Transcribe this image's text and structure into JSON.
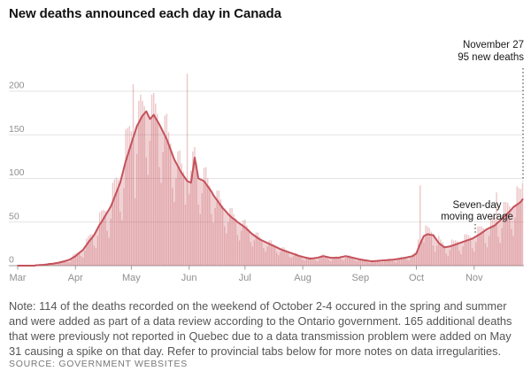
{
  "page": {
    "title": "New deaths announced each day in Canada"
  },
  "annotations": {
    "peak_date": "November 27",
    "peak_value": "95 new deaths",
    "ma_label_line1": "Seven-day",
    "ma_label_line2": "moving average"
  },
  "note": "Note: 114 of the deaths recorded on the weekend of October 2-4 occured in the spring and summer and were added as part of a data review according to the Ontario government. 165 additional deaths that were previously not reported in Quebec due to a data transmission problem were added on May 31 causing a spike on that day. Refer to provincial tabs below for more notes on data irregularities.",
  "source": "SOURCE: GOVERNMENT WEBSITES",
  "colors": {
    "accent_red": "#c4525b",
    "bar_fill": "#c6535a",
    "grid": "#e3e3e3",
    "baseline": "#9e9e9e",
    "axis_text": "#8f8f8f",
    "annotation_text": "#1a1a1a"
  },
  "chart_data": {
    "type": "bar",
    "title": "New deaths announced each day in Canada",
    "xlabel": "",
    "ylabel": "",
    "ylim": [
      0,
      225
    ],
    "yticks": [
      0,
      50,
      100,
      150,
      200
    ],
    "grid": true,
    "n_days": 272,
    "x_range_note": "daily values, March 1 through November 27",
    "months": [
      {
        "label": "Mar",
        "day_offset": 0
      },
      {
        "label": "Apr",
        "day_offset": 31
      },
      {
        "label": "May",
        "day_offset": 61
      },
      {
        "label": "Jun",
        "day_offset": 92
      },
      {
        "label": "Jul",
        "day_offset": 122
      },
      {
        "label": "Aug",
        "day_offset": 153
      },
      {
        "label": "Sep",
        "day_offset": 184
      },
      {
        "label": "Oct",
        "day_offset": 214
      },
      {
        "label": "Nov",
        "day_offset": 245
      }
    ],
    "highlights": {
      "last_day_value": 95,
      "may31_spike": 220,
      "oct3_review_spike": 92,
      "ma_peak": 177
    },
    "series": [
      {
        "name": "New deaths announced each day",
        "type": "bar",
        "values": [
          0,
          0,
          0,
          0,
          0,
          0,
          0,
          0,
          0,
          1,
          1,
          1,
          1,
          1,
          1,
          1,
          2,
          3,
          2,
          3,
          2,
          2,
          3,
          5,
          6,
          6,
          6,
          4,
          4,
          7,
          13,
          14,
          15,
          16,
          11,
          9,
          17,
          31,
          34,
          36,
          36,
          23,
          20,
          34,
          61,
          63,
          64,
          63,
          40,
          32,
          54,
          95,
          99,
          101,
          99,
          62,
          52,
          89,
          156,
          158,
          160,
          154,
          208,
          77,
          128,
          189,
          196,
          189,
          183,
          124,
          104,
          143,
          196,
          198,
          186,
          174,
          113,
          95,
          130,
          172,
          174,
          153,
          140,
          89,
          73,
          100,
          131,
          132,
          117,
          108,
          70,
          220,
          82,
          109,
          131,
          136,
          118,
          70,
          59,
          83,
          112,
          113,
          100,
          92,
          59,
          49,
          66,
          86,
          86,
          76,
          69,
          45,
          37,
          50,
          66,
          66,
          59,
          54,
          35,
          29,
          40,
          52,
          53,
          46,
          42,
          27,
          22,
          29,
          38,
          38,
          33,
          30,
          20,
          16,
          22,
          29,
          29,
          25,
          23,
          15,
          12,
          16,
          21,
          21,
          18,
          17,
          10,
          9,
          11,
          15,
          14,
          12,
          11,
          7,
          6,
          8,
          10,
          10,
          9,
          9,
          6,
          5,
          8,
          12,
          13,
          12,
          10,
          7,
          5,
          8,
          10,
          11,
          10,
          10,
          7,
          6,
          9,
          12,
          12,
          10,
          9,
          6,
          5,
          6,
          8,
          8,
          7,
          6,
          4,
          3,
          4,
          6,
          6,
          6,
          6,
          4,
          4,
          5,
          7,
          8,
          7,
          7,
          5,
          4,
          7,
          9,
          10,
          10,
          9,
          7,
          6,
          9,
          13,
          15,
          17,
          30,
          92,
          28,
          27,
          46,
          45,
          43,
          39,
          23,
          16,
          23,
          34,
          30,
          27,
          23,
          14,
          11,
          18,
          30,
          29,
          29,
          28,
          17,
          13,
          22,
          36,
          36,
          35,
          33,
          20,
          16,
          27,
          45,
          45,
          45,
          43,
          26,
          21,
          34,
          57,
          56,
          55,
          84,
          33,
          26,
          43,
          73,
          73,
          72,
          68,
          42,
          34,
          55,
          91,
          89,
          88,
          95
        ]
      },
      {
        "name": "Seven-day moving average",
        "type": "line",
        "values": [
          0,
          0,
          0,
          0,
          0,
          0,
          0,
          0,
          0,
          0,
          0.5,
          0.6,
          0.8,
          0.9,
          1,
          1.2,
          1.5,
          2,
          2,
          2.3,
          2.7,
          3,
          3.5,
          4,
          4.5,
          5,
          5.7,
          6.3,
          7,
          8.3,
          9.7,
          11,
          12.8,
          14.5,
          16.3,
          18,
          21,
          24,
          27,
          29.7,
          32.3,
          35,
          39,
          43,
          47,
          50,
          53.6,
          57.2,
          60.8,
          64.4,
          68,
          73.4,
          78.8,
          84.2,
          89.6,
          95,
          103.3,
          111.7,
          120,
          126.7,
          133.3,
          140,
          146.7,
          153.3,
          160,
          164,
          168,
          172,
          174.5,
          177,
          172.5,
          168,
          170.5,
          173,
          169.3,
          165.7,
          162,
          157.8,
          153.5,
          149.3,
          145,
          139.3,
          133.5,
          127.8,
          122,
          118,
          114,
          110,
          106,
          103,
          100,
          97,
          96,
          95,
          109,
          124,
          112,
          100,
          99,
          98,
          97,
          94,
          91,
          88,
          85,
          81,
          78,
          75,
          72,
          69,
          66,
          64,
          61.5,
          59,
          57,
          55,
          53.5,
          52,
          50,
          48.5,
          47,
          45.5,
          44,
          42,
          40,
          38,
          36,
          34.5,
          33,
          31.5,
          30,
          29,
          28,
          27,
          26,
          25,
          24,
          23,
          22,
          21,
          20,
          19,
          18,
          17.3,
          16.5,
          15.8,
          15,
          14.3,
          13.5,
          12.8,
          12,
          11.3,
          10.7,
          10,
          9.5,
          9,
          8.5,
          8,
          8.3,
          8.5,
          8.8,
          9,
          9.7,
          10.3,
          11,
          10.5,
          10,
          9.5,
          9,
          9,
          9,
          9,
          9,
          9.5,
          10,
          10.5,
          11,
          10.5,
          10,
          9.5,
          9,
          8.5,
          8,
          7.5,
          7,
          6.7,
          6.3,
          6,
          5.7,
          5.3,
          5,
          5.2,
          5.3,
          5.5,
          5.7,
          5.8,
          6,
          6.2,
          6.3,
          6.5,
          6.7,
          6.8,
          7,
          7.3,
          7.7,
          8,
          8.3,
          8.7,
          9,
          9.5,
          10,
          10.5,
          11,
          12.5,
          14,
          19.5,
          25,
          29.5,
          34,
          35,
          36,
          35.7,
          35.3,
          35,
          32,
          29,
          26,
          24.3,
          22.7,
          21,
          21.3,
          21.7,
          22,
          22.8,
          23.5,
          24.3,
          25,
          25.8,
          26.5,
          27.3,
          28,
          28.8,
          29.5,
          30.3,
          31,
          32.3,
          33.5,
          34.8,
          36,
          37.5,
          39,
          40.5,
          42,
          43,
          44,
          45,
          46,
          48,
          50,
          52,
          54,
          56,
          58,
          60,
          62,
          64.5,
          67,
          68.5,
          70,
          71.5,
          73,
          76
        ]
      }
    ]
  }
}
